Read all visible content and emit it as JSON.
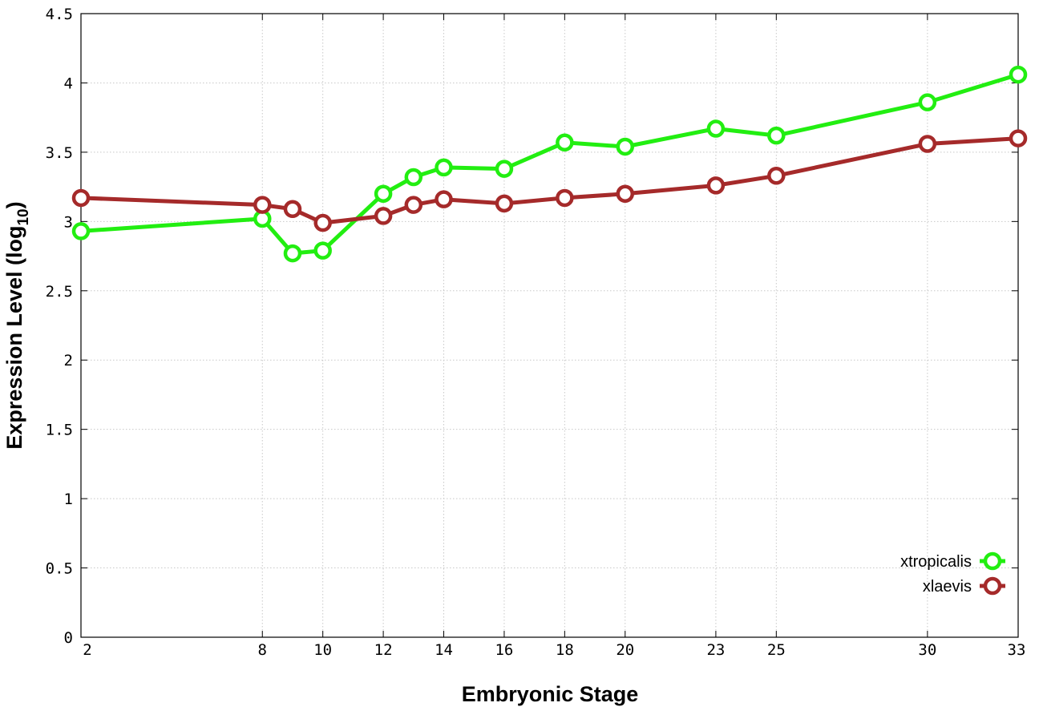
{
  "chart_data": {
    "type": "line",
    "xlabel": "Embryonic Stage",
    "ylabel_main": "Expression Level (log",
    "ylabel_sub": "10",
    "ylabel_close": ")",
    "xlim": [
      2,
      33
    ],
    "ylim": [
      0,
      4.5
    ],
    "x_ticks": [
      2,
      8,
      10,
      12,
      14,
      16,
      18,
      20,
      23,
      25,
      30,
      33
    ],
    "y_ticks": [
      0,
      0.5,
      1,
      1.5,
      2,
      2.5,
      3,
      3.5,
      4,
      4.5
    ],
    "y_tick_labels": [
      "0",
      "0.5",
      "1",
      "1.5",
      "2",
      "2.5",
      "3",
      "3.5",
      "4",
      "4.5"
    ],
    "grid": true,
    "legend_position": "bottom-right",
    "series": [
      {
        "name": "xtropicalis",
        "color": "#22ee11",
        "x": [
          2,
          8,
          9,
          10,
          12,
          13,
          14,
          16,
          18,
          20,
          23,
          25,
          30,
          33
        ],
        "y": [
          2.93,
          3.02,
          2.77,
          2.79,
          3.2,
          3.32,
          3.39,
          3.38,
          3.57,
          3.54,
          3.67,
          3.62,
          3.86,
          4.06
        ]
      },
      {
        "name": "xlaevis",
        "color": "#a52a2a",
        "x": [
          2,
          8,
          9,
          10,
          12,
          13,
          14,
          16,
          18,
          20,
          23,
          25,
          30,
          33
        ],
        "y": [
          3.17,
          3.12,
          3.09,
          2.99,
          3.04,
          3.12,
          3.16,
          3.13,
          3.17,
          3.2,
          3.26,
          3.33,
          3.56,
          3.6
        ]
      }
    ]
  }
}
